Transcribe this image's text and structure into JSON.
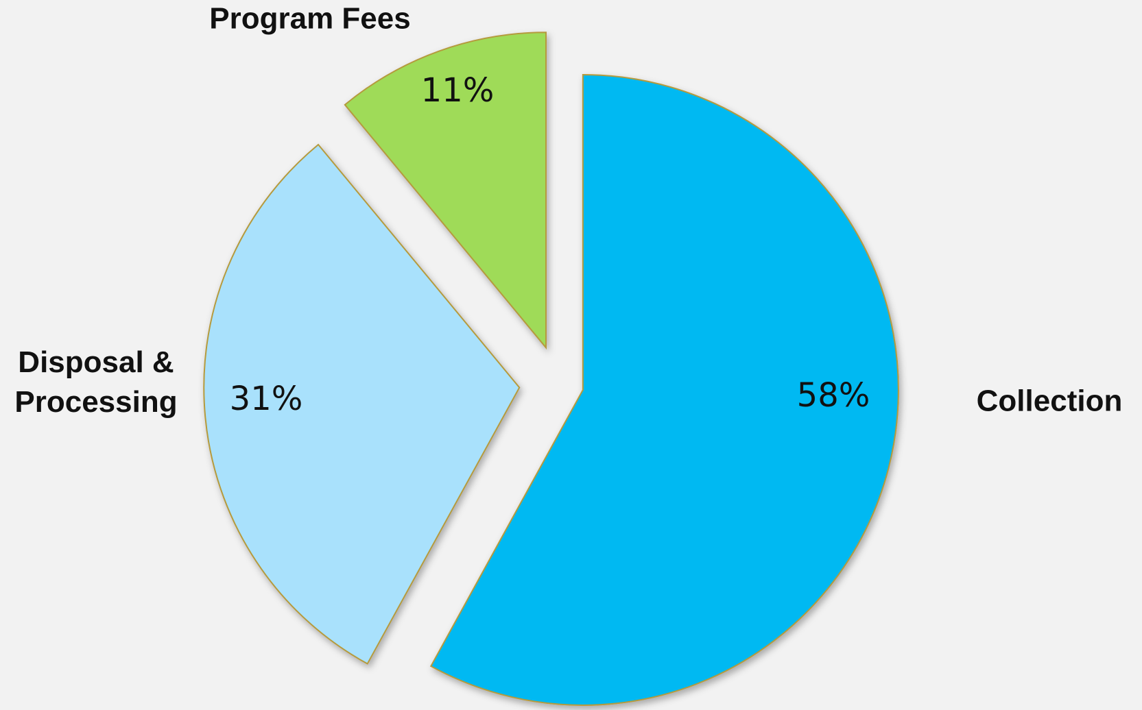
{
  "chart_data": {
    "type": "pie",
    "categories": [
      "Collection",
      "Disposal & Processing",
      "Program Fees"
    ],
    "values": [
      58,
      31,
      11
    ],
    "value_labels": [
      "58%",
      "31%",
      "11%"
    ],
    "colors": [
      "#00b9f2",
      "#a9e1fc",
      "#9fdb58"
    ]
  }
}
